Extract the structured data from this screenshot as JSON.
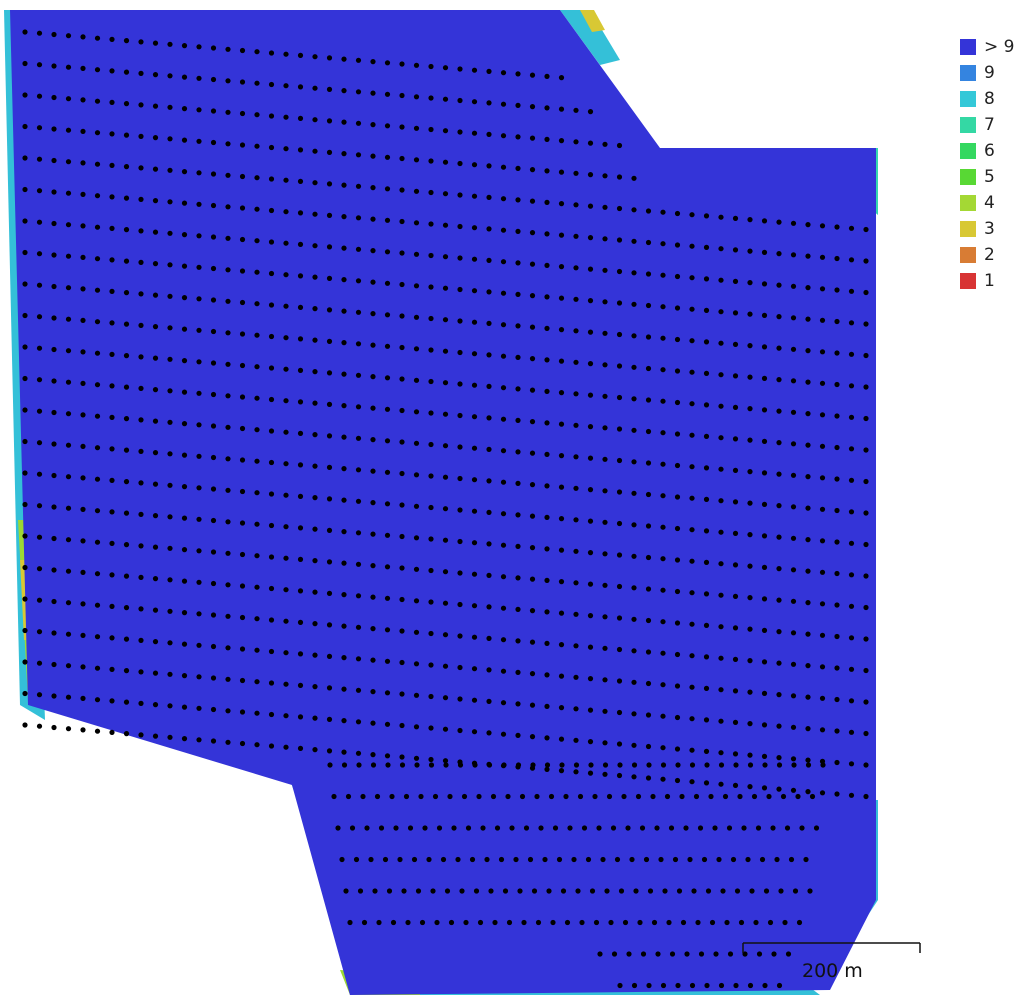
{
  "map": {
    "surface_color": "#3434d8",
    "camera_dot_color": "#000000",
    "edge_palette": [
      "#34c0d8",
      "#34d8b0",
      "#34d86c",
      "#9cd834",
      "#d8c834",
      "#d87c34",
      "#d83434",
      "#2e80e0"
    ]
  },
  "legend": {
    "items": [
      {
        "label": "> 9",
        "color": "#3434d8"
      },
      {
        "label": "9",
        "color": "#3484e0"
      },
      {
        "label": "8",
        "color": "#34c8d8"
      },
      {
        "label": "7",
        "color": "#34d8a4"
      },
      {
        "label": "6",
        "color": "#34d860"
      },
      {
        "label": "5",
        "color": "#58d834"
      },
      {
        "label": "4",
        "color": "#a4d834"
      },
      {
        "label": "3",
        "color": "#d8c834"
      },
      {
        "label": "2",
        "color": "#d87c34"
      },
      {
        "label": "1",
        "color": "#d83434"
      }
    ]
  },
  "scale_bar": {
    "label": "200 m"
  }
}
